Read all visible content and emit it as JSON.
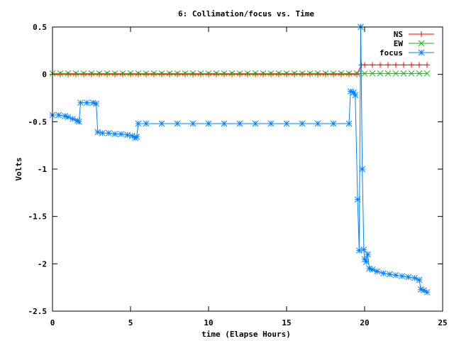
{
  "chart_data": {
    "type": "line",
    "title": "6: Collimation/focus vs. Time",
    "xlabel": "time (Elapse Hours)",
    "ylabel": "Volts",
    "xlim": [
      0,
      25
    ],
    "ylim": [
      -2.5,
      0.5
    ],
    "xticks": [
      "0",
      "5",
      "10",
      "15",
      "20",
      "25"
    ],
    "yticks": [
      "0.5",
      "0",
      "-0.5",
      "-1",
      "-1.5",
      "-2",
      "-2.5"
    ],
    "grid": false,
    "legend_position": "top-right",
    "series": [
      {
        "name": "NS",
        "color": "#ff0000",
        "marker": "plus",
        "x": [
          0.0,
          0.5,
          1.0,
          1.5,
          2.0,
          2.5,
          3.0,
          3.5,
          4.0,
          4.5,
          5.0,
          5.5,
          6.0,
          6.5,
          7.0,
          7.5,
          8.0,
          8.5,
          9.0,
          9.5,
          10.0,
          10.5,
          11.0,
          11.5,
          12.0,
          12.5,
          13.0,
          13.5,
          14.0,
          14.5,
          15.0,
          15.5,
          16.0,
          16.5,
          17.0,
          17.5,
          18.0,
          18.5,
          19.0,
          19.5,
          19.8,
          20.0,
          20.5,
          21.0,
          21.5,
          22.0,
          22.5,
          23.0,
          23.5,
          24.0
        ],
        "y": [
          0.0,
          0.0,
          0.0,
          0.0,
          0.0,
          0.0,
          0.0,
          0.0,
          0.0,
          0.0,
          0.0,
          0.0,
          0.0,
          0.0,
          0.0,
          0.0,
          0.0,
          0.0,
          0.0,
          0.0,
          0.0,
          0.0,
          0.0,
          0.0,
          0.0,
          0.0,
          0.0,
          0.0,
          0.0,
          0.0,
          0.0,
          0.0,
          0.0,
          0.0,
          0.0,
          0.0,
          0.0,
          0.0,
          0.0,
          0.0,
          0.1,
          0.1,
          0.1,
          0.1,
          0.1,
          0.1,
          0.1,
          0.1,
          0.1,
          0.1
        ]
      },
      {
        "name": "EW",
        "color": "#00c000",
        "marker": "cross",
        "x": [
          0.0,
          0.5,
          1.0,
          1.5,
          2.0,
          2.5,
          3.0,
          3.5,
          4.0,
          4.5,
          5.0,
          5.5,
          6.0,
          6.5,
          7.0,
          7.5,
          8.0,
          8.5,
          9.0,
          9.5,
          10.0,
          10.5,
          11.0,
          11.5,
          12.0,
          12.5,
          13.0,
          13.5,
          14.0,
          14.5,
          15.0,
          15.5,
          16.0,
          16.5,
          17.0,
          17.5,
          18.0,
          18.5,
          19.0,
          19.5,
          20.0,
          20.5,
          21.0,
          21.5,
          22.0,
          22.5,
          23.0,
          23.5,
          24.0
        ],
        "y": [
          0.01,
          0.01,
          0.01,
          0.01,
          0.01,
          0.01,
          0.01,
          0.01,
          0.01,
          0.01,
          0.01,
          0.01,
          0.01,
          0.01,
          0.01,
          0.01,
          0.01,
          0.01,
          0.01,
          0.01,
          0.01,
          0.01,
          0.01,
          0.01,
          0.01,
          0.01,
          0.01,
          0.01,
          0.01,
          0.01,
          0.01,
          0.01,
          0.01,
          0.01,
          0.01,
          0.01,
          0.01,
          0.01,
          0.01,
          0.01,
          0.01,
          0.01,
          0.01,
          0.01,
          0.01,
          0.01,
          0.01,
          0.01,
          0.01
        ]
      },
      {
        "name": "focus",
        "color": "#0080ff",
        "marker": "star",
        "x": [
          0.0,
          0.4,
          0.8,
          1.0,
          1.3,
          1.6,
          1.7,
          1.8,
          2.2,
          2.6,
          2.8,
          2.9,
          3.2,
          3.6,
          4.0,
          4.4,
          4.8,
          5.1,
          5.3,
          5.4,
          5.5,
          6.0,
          7.0,
          8.0,
          9.0,
          10.0,
          11.0,
          12.0,
          13.0,
          14.0,
          15.0,
          16.0,
          17.0,
          18.0,
          19.0,
          19.1,
          19.3,
          19.4,
          19.55,
          19.65,
          19.75,
          19.85,
          19.95,
          20.0,
          20.1,
          20.2,
          20.3,
          20.5,
          20.8,
          21.2,
          21.6,
          22.0,
          22.4,
          22.8,
          23.2,
          23.5,
          23.6,
          23.8,
          24.0
        ],
        "y": [
          -0.43,
          -0.43,
          -0.44,
          -0.45,
          -0.47,
          -0.49,
          -0.5,
          -0.3,
          -0.3,
          -0.3,
          -0.31,
          -0.61,
          -0.62,
          -0.62,
          -0.63,
          -0.63,
          -0.64,
          -0.65,
          -0.67,
          -0.66,
          -0.52,
          -0.52,
          -0.52,
          -0.52,
          -0.52,
          -0.52,
          -0.52,
          -0.52,
          -0.52,
          -0.52,
          -0.52,
          -0.52,
          -0.52,
          -0.52,
          -0.52,
          -0.18,
          -0.19,
          -0.22,
          -1.32,
          -1.86,
          0.5,
          -1.0,
          -1.85,
          -1.95,
          -1.98,
          -1.9,
          -2.05,
          -2.06,
          -2.08,
          -2.1,
          -2.11,
          -2.12,
          -2.13,
          -2.14,
          -2.15,
          -2.17,
          -2.27,
          -2.28,
          -2.3
        ]
      }
    ]
  }
}
